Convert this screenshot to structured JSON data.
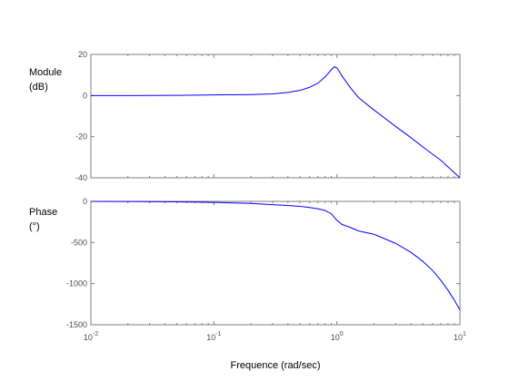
{
  "chart_data": [
    {
      "type": "line",
      "ylabel_lines": [
        "Module",
        "(dB)"
      ],
      "xscale": "log",
      "xlim": [
        0.01,
        10
      ],
      "ylim": [
        -40,
        20
      ],
      "yticks": [
        20,
        0,
        -20,
        -40
      ],
      "ytick_labels": [
        "20",
        "0",
        "-20",
        "-40"
      ],
      "grid": false,
      "color": "#0000ff",
      "series": [
        {
          "x": [
            0.01,
            0.02,
            0.05,
            0.1,
            0.2,
            0.3,
            0.4,
            0.5,
            0.6,
            0.7,
            0.8,
            0.9,
            0.95,
            1.0,
            1.05,
            1.1,
            1.3,
            1.5,
            2.0,
            3.0,
            4.0,
            5.0,
            7.0,
            10.0
          ],
          "y": [
            0,
            0,
            0.1,
            0.3,
            0.5,
            0.8,
            1.5,
            2.5,
            4.0,
            6.0,
            9.0,
            12.5,
            14.0,
            13.5,
            11.5,
            9.5,
            3.5,
            -1.0,
            -7.0,
            -15.0,
            -20.5,
            -25.0,
            -31.5,
            -40.0
          ]
        }
      ]
    },
    {
      "type": "line",
      "ylabel_lines": [
        "Phase",
        "(°)"
      ],
      "xscale": "log",
      "xlim": [
        0.01,
        10
      ],
      "ylim": [
        -1500,
        0
      ],
      "yticks": [
        0,
        -500,
        -1000,
        -1500
      ],
      "ytick_labels": [
        "0",
        "-500",
        "-1000",
        "-1500"
      ],
      "xticks": [
        0.01,
        0.1,
        1,
        10
      ],
      "xtick_labels": [
        {
          "base": "10",
          "exp": "-2"
        },
        {
          "base": "10",
          "exp": "-1"
        },
        {
          "base": "10",
          "exp": "0"
        },
        {
          "base": "10",
          "exp": "1"
        }
      ],
      "xlabel": "Frequence (rad/sec)",
      "grid": false,
      "color": "#0000ff",
      "series": [
        {
          "x": [
            0.01,
            0.02,
            0.05,
            0.1,
            0.2,
            0.3,
            0.4,
            0.5,
            0.6,
            0.7,
            0.8,
            0.9,
            1.0,
            1.1,
            1.3,
            1.5,
            2.0,
            3.0,
            4.0,
            5.0,
            6.0,
            7.0,
            8.0,
            9.0,
            10.0
          ],
          "y": [
            0,
            -2,
            -6,
            -12,
            -25,
            -40,
            -50,
            -60,
            -75,
            -90,
            -110,
            -150,
            -230,
            -280,
            -320,
            -360,
            -400,
            -510,
            -620,
            -730,
            -840,
            -960,
            -1080,
            -1200,
            -1320
          ]
        }
      ]
    }
  ]
}
